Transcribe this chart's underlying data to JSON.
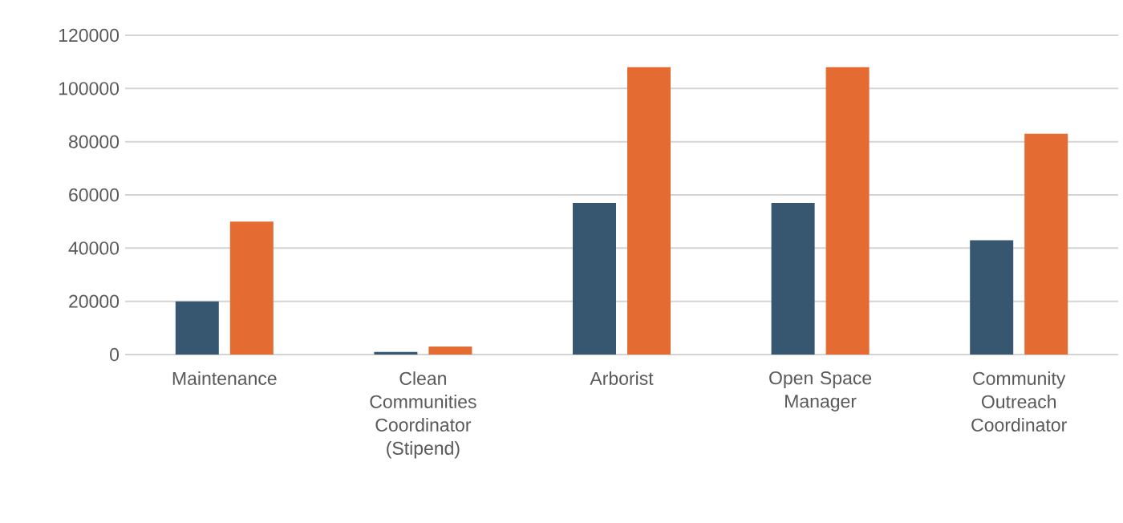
{
  "chart_data": {
    "type": "bar",
    "categories": [
      "Maintenance",
      "Clean Communities Coordinator (Stipend)",
      "Arborist",
      "Open Space Manager",
      "Community Outreach Coordinator"
    ],
    "series": [
      {
        "color": "#375670",
        "values": [
          20000,
          1000,
          57000,
          57000,
          43000
        ]
      },
      {
        "color": "#e46c33",
        "values": [
          50000,
          3000,
          108000,
          108000,
          83000
        ]
      }
    ],
    "ylim": [
      0,
      120000
    ],
    "yticks": [
      0,
      20000,
      40000,
      60000,
      80000,
      100000,
      120000
    ],
    "grid": "y"
  }
}
